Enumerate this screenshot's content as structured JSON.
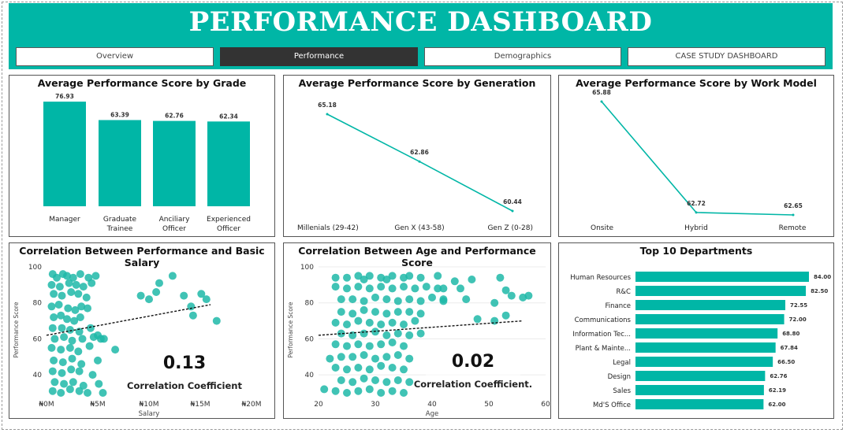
{
  "header": {
    "title": "PERFORMANCE DASHBOARD",
    "tabs": [
      {
        "label": "Overview",
        "active": false
      },
      {
        "label": "Performance",
        "active": true
      },
      {
        "label": "Demographics",
        "active": false
      },
      {
        "label": "CASE STUDY DASHBOARD",
        "active": false
      }
    ]
  },
  "colors": {
    "accent": "#00b6a6",
    "nav_active": "#333333",
    "point": "#1fb9a8"
  },
  "chart_data": [
    {
      "type": "bar",
      "title": "Average Performance Score by Grade",
      "categories": [
        "Manager",
        "Graduate Trainee",
        "Anciliary Officer",
        "Experienced Officer"
      ],
      "values": [
        76.93,
        63.39,
        62.76,
        62.34
      ],
      "data_labels": [
        "76.93",
        "63.39",
        "62.76",
        "62.34"
      ]
    },
    {
      "type": "line",
      "title": "Average Performance Score by Generation",
      "categories": [
        "Millenials (29-42)",
        "Gen X (43-58)",
        "Gen Z (0-28)"
      ],
      "values": [
        65.18,
        62.86,
        60.44
      ],
      "data_labels": [
        "65.18",
        "62.86",
        "60.44"
      ]
    },
    {
      "type": "line",
      "title": "Average Performance Score by Work Model",
      "categories": [
        "Onsite",
        "Hybrid",
        "Remote"
      ],
      "values": [
        65.88,
        62.72,
        62.65
      ],
      "data_labels": [
        "65.88",
        "62.72",
        "62.65"
      ]
    },
    {
      "type": "scatter",
      "title": "Correlation Between Performance and Basic Salary",
      "xlabel": "Salary",
      "ylabel": "Performance Score",
      "xticks": [
        "₦0M",
        "₦5M",
        "₦10M",
        "₦15M",
        "₦20M"
      ],
      "yticks": [
        "40",
        "60",
        "80",
        "100"
      ],
      "xlim": [
        0,
        20000000
      ],
      "ylim": [
        30,
        100
      ],
      "trendline": [
        [
          0,
          62
        ],
        [
          16000000,
          79
        ]
      ],
      "correlation_value": "0.13",
      "correlation_label": "Correlation Coefficient",
      "points": [
        [
          600000,
          96
        ],
        [
          1000000,
          94
        ],
        [
          1600000,
          96
        ],
        [
          2000000,
          95
        ],
        [
          2600000,
          94
        ],
        [
          3300000,
          96
        ],
        [
          4100000,
          94
        ],
        [
          4800000,
          95
        ],
        [
          500000,
          90
        ],
        [
          1300000,
          89
        ],
        [
          2200000,
          91
        ],
        [
          2900000,
          90
        ],
        [
          3600000,
          89
        ],
        [
          4400000,
          91
        ],
        [
          700000,
          85
        ],
        [
          1500000,
          84
        ],
        [
          2400000,
          86
        ],
        [
          3100000,
          85
        ],
        [
          3900000,
          83
        ],
        [
          500000,
          78
        ],
        [
          1200000,
          79
        ],
        [
          2100000,
          77
        ],
        [
          2800000,
          76
        ],
        [
          3400000,
          78
        ],
        [
          4000000,
          77
        ],
        [
          700000,
          72
        ],
        [
          1400000,
          73
        ],
        [
          2000000,
          71
        ],
        [
          2700000,
          70
        ],
        [
          3300000,
          72
        ],
        [
          600000,
          66
        ],
        [
          1500000,
          66
        ],
        [
          2300000,
          65
        ],
        [
          3200000,
          64
        ],
        [
          4300000,
          66
        ],
        [
          800000,
          60
        ],
        [
          1700000,
          61
        ],
        [
          2500000,
          59
        ],
        [
          3500000,
          60
        ],
        [
          4600000,
          61
        ],
        [
          5300000,
          60
        ],
        [
          500000,
          55
        ],
        [
          1400000,
          54
        ],
        [
          2300000,
          55
        ],
        [
          3100000,
          53
        ],
        [
          4200000,
          56
        ],
        [
          6700000,
          54
        ],
        [
          700000,
          48
        ],
        [
          1600000,
          47
        ],
        [
          2500000,
          49
        ],
        [
          3400000,
          46
        ],
        [
          5000000,
          48
        ],
        [
          600000,
          42
        ],
        [
          1500000,
          41
        ],
        [
          2400000,
          43
        ],
        [
          3200000,
          42
        ],
        [
          4500000,
          40
        ],
        [
          800000,
          36
        ],
        [
          1700000,
          35
        ],
        [
          2600000,
          36
        ],
        [
          3600000,
          34
        ],
        [
          5100000,
          35
        ],
        [
          600000,
          31
        ],
        [
          1400000,
          30
        ],
        [
          2300000,
          32
        ],
        [
          3200000,
          31
        ],
        [
          4000000,
          30
        ],
        [
          5500000,
          30
        ],
        [
          5000000,
          62
        ],
        [
          5600000,
          60
        ],
        [
          9200000,
          84
        ],
        [
          10000000,
          82
        ],
        [
          10700000,
          86
        ],
        [
          11000000,
          91
        ],
        [
          12300000,
          95
        ],
        [
          13400000,
          84
        ],
        [
          14100000,
          78
        ],
        [
          15100000,
          85
        ],
        [
          15600000,
          82
        ],
        [
          14300000,
          73
        ],
        [
          16600000,
          70
        ]
      ]
    },
    {
      "type": "scatter",
      "title": "Correlation Between Age and Performance Score",
      "xlabel": "Age",
      "ylabel": "Performance Score",
      "xticks": [
        "20",
        "30",
        "40",
        "50",
        "60"
      ],
      "yticks": [
        "40",
        "60",
        "80",
        "100"
      ],
      "xlim": [
        20,
        60
      ],
      "ylim": [
        30,
        100
      ],
      "trendline": [
        [
          20,
          62
        ],
        [
          56,
          70
        ]
      ],
      "correlation_value": "0.02",
      "correlation_label": "Correlation Coefficient.",
      "points": [
        [
          23,
          94
        ],
        [
          25,
          94
        ],
        [
          27,
          95
        ],
        [
          28,
          93
        ],
        [
          29,
          95
        ],
        [
          31,
          94
        ],
        [
          32,
          93
        ],
        [
          33,
          95
        ],
        [
          35,
          94
        ],
        [
          36,
          95
        ],
        [
          38,
          94
        ],
        [
          23,
          89
        ],
        [
          25,
          88
        ],
        [
          27,
          89
        ],
        [
          29,
          88
        ],
        [
          31,
          89
        ],
        [
          33,
          88
        ],
        [
          35,
          89
        ],
        [
          37,
          88
        ],
        [
          39,
          89
        ],
        [
          41,
          88
        ],
        [
          24,
          82
        ],
        [
          26,
          82
        ],
        [
          28,
          81
        ],
        [
          30,
          83
        ],
        [
          32,
          82
        ],
        [
          34,
          81
        ],
        [
          36,
          82
        ],
        [
          38,
          81
        ],
        [
          40,
          83
        ],
        [
          42,
          82
        ],
        [
          24,
          75
        ],
        [
          26,
          74
        ],
        [
          28,
          76
        ],
        [
          30,
          75
        ],
        [
          32,
          74
        ],
        [
          34,
          75
        ],
        [
          36,
          75
        ],
        [
          38,
          74
        ],
        [
          23,
          69
        ],
        [
          25,
          68
        ],
        [
          27,
          70
        ],
        [
          29,
          69
        ],
        [
          31,
          68
        ],
        [
          33,
          69
        ],
        [
          35,
          68
        ],
        [
          37,
          70
        ],
        [
          24,
          63
        ],
        [
          26,
          62
        ],
        [
          28,
          63
        ],
        [
          30,
          64
        ],
        [
          32,
          62
        ],
        [
          34,
          63
        ],
        [
          36,
          62
        ],
        [
          38,
          63
        ],
        [
          23,
          57
        ],
        [
          25,
          56
        ],
        [
          27,
          57
        ],
        [
          29,
          56
        ],
        [
          31,
          57
        ],
        [
          33,
          58
        ],
        [
          35,
          56
        ],
        [
          24,
          50
        ],
        [
          26,
          50
        ],
        [
          28,
          51
        ],
        [
          30,
          49
        ],
        [
          32,
          50
        ],
        [
          34,
          51
        ],
        [
          36,
          49
        ],
        [
          23,
          44
        ],
        [
          25,
          43
        ],
        [
          27,
          44
        ],
        [
          29,
          43
        ],
        [
          31,
          45
        ],
        [
          33,
          44
        ],
        [
          35,
          43
        ],
        [
          24,
          37
        ],
        [
          26,
          36
        ],
        [
          28,
          38
        ],
        [
          30,
          37
        ],
        [
          32,
          36
        ],
        [
          34,
          37
        ],
        [
          36,
          36
        ],
        [
          23,
          31
        ],
        [
          25,
          30
        ],
        [
          27,
          31
        ],
        [
          29,
          32
        ],
        [
          31,
          30
        ],
        [
          33,
          31
        ],
        [
          35,
          30
        ],
        [
          21,
          32
        ],
        [
          22,
          49
        ],
        [
          41,
          95
        ],
        [
          42,
          88
        ],
        [
          42,
          81
        ],
        [
          44,
          92
        ],
        [
          45,
          88
        ],
        [
          46,
          82
        ],
        [
          47,
          93
        ],
        [
          48,
          71
        ],
        [
          51,
          70
        ],
        [
          53,
          73
        ],
        [
          52,
          94
        ],
        [
          53,
          87
        ],
        [
          51,
          80
        ],
        [
          54,
          84
        ],
        [
          56,
          83
        ],
        [
          57,
          84
        ]
      ]
    },
    {
      "type": "bar",
      "orientation": "horizontal",
      "title": "Top 10 Departments",
      "categories": [
        "Human Resources",
        "R&C",
        "Finance",
        "Communications",
        "Information Tec...",
        "Plant & Mainte...",
        "Legal",
        "Design",
        "Sales",
        "Md'S Office"
      ],
      "values": [
        84.0,
        82.5,
        72.55,
        72.0,
        68.8,
        67.84,
        66.5,
        62.76,
        62.19,
        62.0
      ],
      "data_labels": [
        "84.00",
        "82.50",
        "72.55",
        "72.00",
        "68.80",
        "67.84",
        "66.50",
        "62.76",
        "62.19",
        "62.00"
      ]
    }
  ]
}
